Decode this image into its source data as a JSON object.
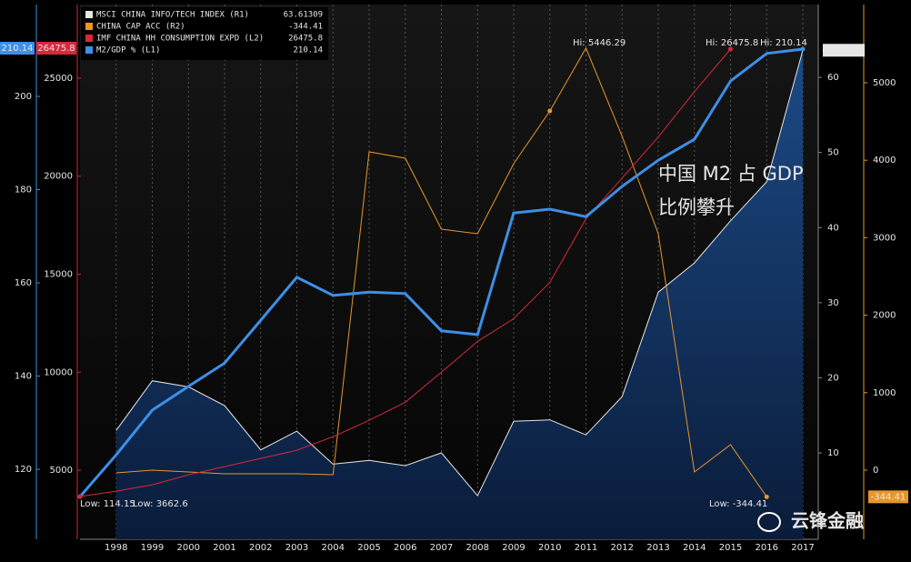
{
  "chart_data": {
    "type": "line",
    "categories": [
      null,
      "1998",
      "1999",
      "2000",
      "2001",
      "2002",
      "2003",
      "2004",
      "2005",
      "2006",
      "2007",
      "2008",
      "2009",
      "2010",
      "2011",
      "2012",
      "2013",
      "2014",
      "2015",
      "2016",
      "2017"
    ],
    "series": [
      {
        "name": "MSCI CHINA INFO/TECH INDEX (R1)",
        "color": "#e6e6e6",
        "axis": "y2",
        "area": true,
        "values": [
          null,
          13.0,
          19.6,
          18.8,
          16.3,
          10.4,
          12.9,
          8.5,
          9.0,
          8.3,
          10.0,
          4.3,
          14.2,
          14.4,
          12.4,
          17.5,
          31.4,
          35.3,
          40.9,
          46.1,
          63.61309
        ]
      },
      {
        "name": "CHINA CAP ACC (R2)",
        "color": "#e8962c",
        "axis": "y4",
        "values": [
          null,
          -35,
          0,
          -23,
          -47,
          -47,
          -47,
          -59,
          4108,
          4026,
          3110,
          3052,
          3955,
          4636,
          5446.29,
          4308,
          3052,
          -23,
          329,
          -344.41,
          null
        ]
      },
      {
        "name": "IMF CHINA HH CONSUMPTION EXPD (L2)",
        "color": "#d8283c",
        "axis": "y3",
        "values": [
          3662.6,
          3935,
          4259,
          4769,
          5185,
          5602,
          6019,
          6713,
          7546,
          8472,
          10000,
          11574,
          12731,
          14583,
          17824,
          19907,
          21991,
          24306,
          26475.8,
          null,
          null
        ]
      },
      {
        "name": "M2/GDP % (L1)",
        "color": "#3d8fe8",
        "axis": "y",
        "values": [
          114.15,
          123.1,
          132.7,
          137.8,
          142.8,
          152.0,
          161.2,
          157.3,
          158.0,
          157.7,
          149.7,
          148.9,
          175.0,
          175.8,
          174.2,
          180.7,
          186.3,
          190.8,
          203.3,
          209.2,
          210.14
        ]
      }
    ],
    "ylim": [
      105,
      219.7
    ],
    "yticks": [
      120,
      140,
      160,
      180,
      200
    ],
    "y3lim": [
      1481,
      28750
    ],
    "y3ticks": [
      5000,
      10000,
      15000,
      20000,
      25000
    ],
    "y2lim": [
      -1.5,
      69.7
    ],
    "y2ticks": [
      10,
      20,
      30,
      40,
      50,
      60
    ],
    "y4lim": [
      -892,
      6009
    ],
    "y4ticks": [
      0,
      1000,
      2000,
      3000,
      4000,
      5000
    ],
    "grid": true,
    "annotations": [
      "Hi: 5446.29",
      "Hi: 26475.8",
      "Hi: 210.14",
      "Low: 114.15",
      "Low: 3662.6",
      "Low: -344.41"
    ],
    "overlay_text": [
      "中国 M2 占 GDP",
      "比例攀升"
    ],
    "watermark": "云锋金融"
  }
}
